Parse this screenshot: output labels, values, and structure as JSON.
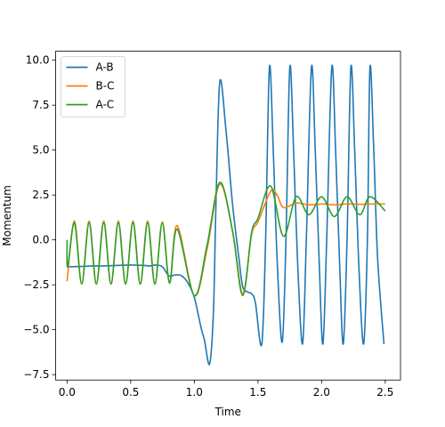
{
  "chart_data": {
    "type": "line",
    "xlabel": "Time",
    "ylabel": "Momentum",
    "xlim": [
      -0.09,
      2.62
    ],
    "ylim": [
      -7.8,
      10.5
    ],
    "xticks": [
      0.0,
      0.5,
      1.0,
      1.5,
      2.0,
      2.5
    ],
    "xtick_labels": [
      "0.0",
      "0.5",
      "1.0",
      "1.5",
      "2.0",
      "2.5"
    ],
    "yticks": [
      -7.5,
      -5.0,
      -2.5,
      0.0,
      2.5,
      5.0,
      7.5,
      10.0
    ],
    "ytick_labels": [
      "−7.5",
      "−5.0",
      "−2.5",
      "0.0",
      "2.5",
      "5.0",
      "7.5",
      "10.0"
    ],
    "legend_position": "top-left",
    "grid": false,
    "series": [
      {
        "name": "A-B",
        "color": "#1f77b4",
        "points": [
          [
            0.0,
            -1.5
          ],
          [
            0.1,
            -1.48
          ],
          [
            0.2,
            -1.45
          ],
          [
            0.3,
            -1.45
          ],
          [
            0.4,
            -1.42
          ],
          [
            0.5,
            -1.4
          ],
          [
            0.6,
            -1.42
          ],
          [
            0.65,
            -1.45
          ],
          [
            0.7,
            -1.4
          ],
          [
            0.75,
            -1.5
          ],
          [
            0.8,
            -2.0
          ],
          [
            0.85,
            -1.95
          ],
          [
            0.9,
            -2.0
          ],
          [
            0.95,
            -2.4
          ],
          [
            1.0,
            -3.2
          ],
          [
            1.05,
            -4.8
          ],
          [
            1.08,
            -5.6
          ],
          [
            1.12,
            -6.9
          ],
          [
            1.15,
            -4.0
          ],
          [
            1.17,
            2.0
          ],
          [
            1.2,
            8.8
          ],
          [
            1.25,
            6.0
          ],
          [
            1.3,
            2.0
          ],
          [
            1.35,
            -1.0
          ],
          [
            1.38,
            -2.6
          ],
          [
            1.42,
            -2.9
          ],
          [
            1.45,
            -3.0
          ],
          [
            1.48,
            -3.5
          ],
          [
            1.53,
            -5.8
          ],
          [
            1.56,
            0.0
          ],
          [
            1.59,
            9.6
          ],
          [
            1.62,
            5.0
          ],
          [
            1.65,
            -1.0
          ],
          [
            1.69,
            -5.7
          ],
          [
            1.72,
            0.0
          ],
          [
            1.75,
            9.6
          ],
          [
            1.78,
            5.0
          ],
          [
            1.81,
            -1.0
          ],
          [
            1.85,
            -5.8
          ],
          [
            1.88,
            0.0
          ],
          [
            1.92,
            9.6
          ],
          [
            1.95,
            5.0
          ],
          [
            1.98,
            -1.0
          ],
          [
            2.01,
            -5.8
          ],
          [
            2.04,
            0.0
          ],
          [
            2.08,
            9.6
          ],
          [
            2.11,
            5.0
          ],
          [
            2.14,
            -1.0
          ],
          [
            2.17,
            -5.8
          ],
          [
            2.2,
            0.0
          ],
          [
            2.23,
            9.6
          ],
          [
            2.26,
            5.0
          ],
          [
            2.29,
            -1.0
          ],
          [
            2.33,
            -5.8
          ],
          [
            2.36,
            0.0
          ],
          [
            2.38,
            9.6
          ],
          [
            2.41,
            5.0
          ],
          [
            2.44,
            -1.0
          ],
          [
            2.49,
            -5.8
          ]
        ]
      },
      {
        "name": "B-C",
        "color": "#ff7f0e",
        "points": [
          [
            0.0,
            -2.3
          ],
          [
            0.058,
            1.05
          ],
          [
            0.115,
            -2.45
          ],
          [
            0.173,
            1.05
          ],
          [
            0.23,
            -2.45
          ],
          [
            0.288,
            1.05
          ],
          [
            0.345,
            -2.45
          ],
          [
            0.403,
            1.05
          ],
          [
            0.46,
            -2.45
          ],
          [
            0.518,
            1.05
          ],
          [
            0.575,
            -2.45
          ],
          [
            0.633,
            1.05
          ],
          [
            0.69,
            -2.45
          ],
          [
            0.748,
            1.0
          ],
          [
            0.805,
            -2.4
          ],
          [
            0.865,
            0.8
          ],
          [
            1.0,
            -3.1
          ],
          [
            1.1,
            -0.5
          ],
          [
            1.2,
            3.1
          ],
          [
            1.3,
            0.5
          ],
          [
            1.38,
            -3.0
          ],
          [
            1.45,
            0.3
          ],
          [
            1.5,
            1.0
          ],
          [
            1.6,
            2.7
          ],
          [
            1.65,
            2.5
          ],
          [
            1.7,
            1.8
          ],
          [
            1.8,
            2.05
          ],
          [
            1.9,
            1.95
          ],
          [
            2.0,
            2.0
          ],
          [
            2.1,
            1.95
          ],
          [
            2.2,
            2.0
          ],
          [
            2.3,
            1.98
          ],
          [
            2.4,
            2.0
          ],
          [
            2.5,
            2.0
          ]
        ]
      },
      {
        "name": "A-C",
        "color": "#2ca02c",
        "points": [
          [
            0.0,
            0.0
          ],
          [
            0.005,
            -1.5
          ],
          [
            0.058,
            0.95
          ],
          [
            0.115,
            -2.45
          ],
          [
            0.173,
            0.95
          ],
          [
            0.23,
            -2.45
          ],
          [
            0.288,
            0.95
          ],
          [
            0.345,
            -2.45
          ],
          [
            0.403,
            0.95
          ],
          [
            0.46,
            -2.45
          ],
          [
            0.518,
            0.95
          ],
          [
            0.575,
            -2.45
          ],
          [
            0.633,
            0.95
          ],
          [
            0.69,
            -2.45
          ],
          [
            0.748,
            0.95
          ],
          [
            0.805,
            -2.4
          ],
          [
            0.865,
            0.6
          ],
          [
            1.0,
            -3.1
          ],
          [
            1.1,
            -0.3
          ],
          [
            1.2,
            3.2
          ],
          [
            1.3,
            0.5
          ],
          [
            1.38,
            -3.1
          ],
          [
            1.45,
            0.4
          ],
          [
            1.5,
            1.2
          ],
          [
            1.6,
            3.0
          ],
          [
            1.7,
            0.2
          ],
          [
            1.8,
            2.4
          ],
          [
            1.9,
            1.4
          ],
          [
            2.0,
            2.4
          ],
          [
            2.1,
            1.3
          ],
          [
            2.2,
            2.4
          ],
          [
            2.3,
            1.4
          ],
          [
            2.38,
            2.4
          ],
          [
            2.5,
            1.6
          ]
        ]
      }
    ]
  }
}
